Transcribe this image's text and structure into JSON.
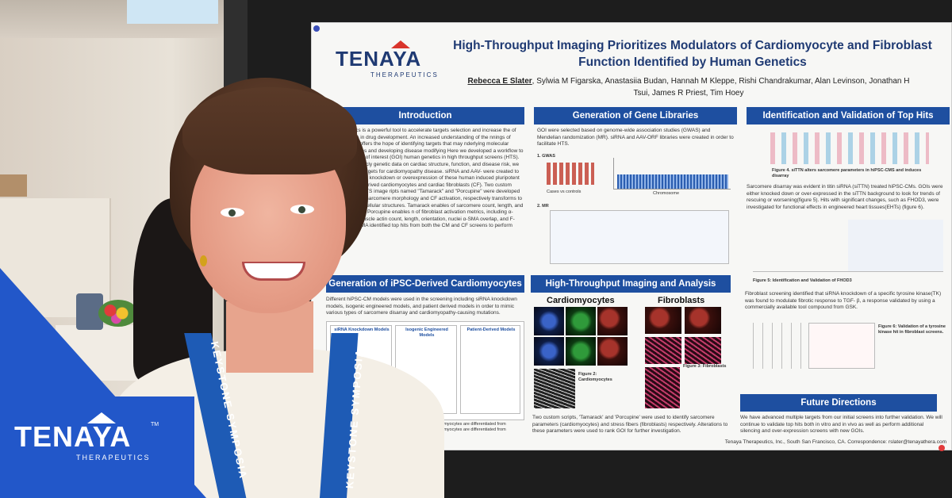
{
  "poster": {
    "logo_word": "TENAYA",
    "logo_sub": "THERAPEUTICS",
    "title": "High-Throughput Imaging Prioritizes Modulators of Cardiomyocyte and Fibroblast Function Identified by Human Genetics",
    "lead_author": "Rebecca E Slater",
    "authors_rest": ", Sylwia M Figarska, Anastasiia Budan, Hannah M Kleppe, Rishi Chandrakumar, Alan Levinson, Jonathan H Tsui, James R Priest, Tim Hoey",
    "sections": {
      "introduction": "Introduction",
      "gene_libraries": "Generation of Gene Libraries",
      "top_hits": "Identification and Validation of Top Hits",
      "ipsc": "Generation of iPSC-Derived Cardiomyocytes",
      "imaging": "High-Throughput Imaging and Analysis",
      "future": "Future Directions"
    },
    "intro_text": "Genetics is a powerful tool to accelerate targets selection and increase the of success in drug development. An increased understanding of the nnings of disease offers the hope of identifying targets that may nderlying molecular pathologies and developing disease modifying Here we developed a workflow to test genes of interest (GOI) human genetics in high throughput screens (HTS). Using publicly genetic data on cardiac structure, function, and disease risk, we than 100 targets for cardiomyopathy disease. siRNA and AAV- were created to facilitate the knockdown or overexpression of these human induced pluripotent stem cell-derived cardiomyocytes and cardiac fibroblasts (CF). Two custom MATLAB HTS image ripts named \"Tamarack\" and \"Porcupine\" were developed for SC-CM sarcomere morphology and CF activation, respectively transforms to detect subcellular structures. Tamarack enables of sarcomere count, length, and orientation. Porcupine enables n of fibroblast activation metrics, including α-smooth muscle actin count, length, orientation, nuclei α-SMA overlap, and F-actin α-SMA identified top hits from both the CM and CF screens to perform further",
    "gene_text": "GOI were selected based on genome-wide association studies (GWAS) and Mendelian randomization (MR). siRNA and AAV-ORF libraries were created in order to facilitate HTS.",
    "gwas_label": "1. GWAS",
    "mr_label": "2. MR",
    "cases_label": "Cases vs controls",
    "chromosome_label": "Chromosome",
    "fig4_caption": "Figure 4. siTTN alters sarcomere parameters in hiPSC-CMS and induces disarray",
    "hits_text": "Sarcomere disarray was evident in titin siRNA (siTTN) treated hiPSC-CMs. GOIs were either knocked down or over-expressed in the siTTN background to look for trends of rescuing or worsening(figure 5). Hits with significant changes, such as FHOD3, were investigated for functional effects in engineered heart tissues(EHTs) (figure 6).",
    "fig5_caption": "Figure 5: Identification and Validation of FHOD3",
    "fibro_text": "Fibroblast screening identified that siRNA knockdown of a specific tyrosine kinase(TK) was found to modulate fibrotic response to TGF- β, a response validated by using a commercially available tool compound from GSK.",
    "fig6_caption": "Figure 6: Validation of a tyrosine kinase hit in fibroblast screens.",
    "ipsc_text": "Different hiPSC-CM models were used in the screening including siRNA knockdown models, isogenic engineered models, and patient derived models in order to mimic various types of sarcomere disarray and cardiomyopathy-causing mutations.",
    "model_labels": [
      "siRNA Knockdown Models",
      "Isogenic Engineered Models",
      "Patient-Derived Models"
    ],
    "ipsc_caption": "Cardiomyocytes are differentiated from Cardiomyocytes are differentiated from",
    "cardio_label": "Cardiomyocytes",
    "fibro_label": "Fibroblasts",
    "fig2_caption": "Figure 2: Cardiomyocytes",
    "fig3_caption": "Figure 3: Fibroblasts",
    "imaging_text": "Two custom scripts, 'Tamarack' and 'Porcupine' were used to identify sarcomere parameters (cardiomyocytes) and stress fibers (fibroblasts) respectively. Alterations to these parameters were used to rank GOI for further investigation.",
    "future_text": "We have advanced multiple targets from our initial screens into further validation. We will continue to validate top hits both in vitro and in vivo as well as perform additional silencing and over-expression screens with new GOIs.",
    "footer": "Tenaya Therapeutics, Inc., South San Francisco, CA. Correspondence: rslater@tenayathera.com"
  },
  "lanyard": {
    "left_text": "KEYSTONE SYMPOSIA",
    "right_text": "KEYSTONE SYMPOSIA"
  },
  "brand": {
    "word": "TENAYA",
    "sub": "THERAPEUTICS",
    "tm": "TM"
  },
  "colors": {
    "poster_blue": "#1e4fa0",
    "brand_blue": "#2257c9",
    "logo_red": "#d9342b"
  }
}
